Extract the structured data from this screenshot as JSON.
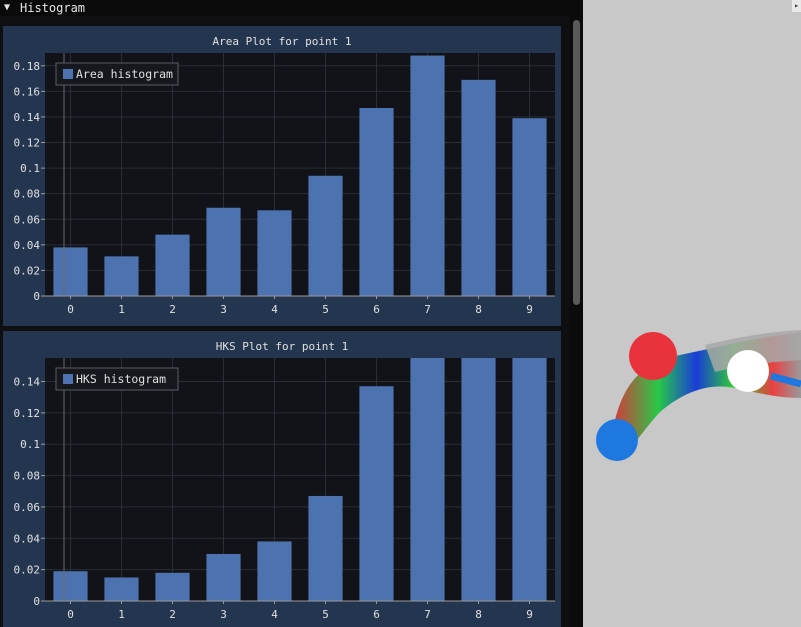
{
  "window": {
    "title": "Histogram",
    "collapse_icon": "triangle-down-icon"
  },
  "theme": {
    "bar_color": "#4c72b0",
    "panel_bg": "#24364f",
    "plot_bg": "#121318",
    "axis_text": "#e0e0e0"
  },
  "plots": [
    {
      "title": "Area Plot for point 1",
      "legend": "Area histogram",
      "chart_data": {
        "type": "bar",
        "title": "Area Plot for point 1",
        "categories": [
          "0",
          "1",
          "2",
          "3",
          "4",
          "5",
          "6",
          "7",
          "8",
          "9"
        ],
        "series": [
          {
            "name": "Area histogram",
            "values": [
              0.038,
              0.031,
              0.048,
              0.069,
              0.067,
              0.094,
              0.147,
              0.188,
              0.169,
              0.139
            ]
          }
        ],
        "ylim": [
          0,
          0.19
        ],
        "yticks": [
          "0",
          "0.02",
          "0.04",
          "0.06",
          "0.08",
          "0.1",
          "0.12",
          "0.14",
          "0.16",
          "0.18"
        ],
        "ytick_values": [
          0,
          0.02,
          0.04,
          0.06,
          0.08,
          0.1,
          0.12,
          0.14,
          0.16,
          0.18
        ],
        "legend_position": "top-left",
        "grid": true
      }
    },
    {
      "title": "HKS Plot for point 1",
      "legend": "HKS histogram",
      "chart_data": {
        "type": "bar",
        "title": "HKS Plot for point 1",
        "categories": [
          "0",
          "1",
          "2",
          "3",
          "4",
          "5",
          "6",
          "7",
          "8",
          "9"
        ],
        "series": [
          {
            "name": "HKS histogram",
            "values": [
              0.019,
              0.015,
              0.018,
              0.03,
              0.038,
              0.067,
              0.137,
              0.158,
              0.158,
              0.158
            ]
          }
        ],
        "ylim": [
          0,
          0.155
        ],
        "yticks": [
          "0",
          "0.02",
          "0.04",
          "0.06",
          "0.08",
          "0.1",
          "0.12",
          "0.14"
        ],
        "ytick_values": [
          0,
          0.02,
          0.04,
          0.06,
          0.08,
          0.1,
          0.12,
          0.14
        ],
        "legend_position": "top-left",
        "grid": true
      }
    }
  ],
  "viewport": {
    "bg": "#c8c8c8",
    "handle_red": "#e8323c",
    "handle_blue": "#1f78e0",
    "handle_white": "#ffffff"
  }
}
